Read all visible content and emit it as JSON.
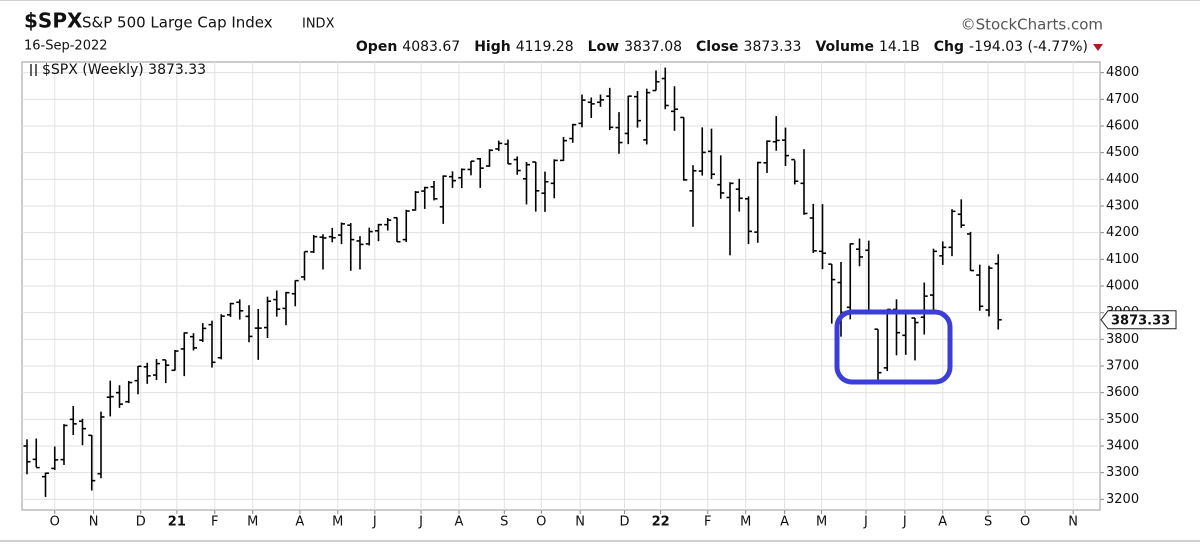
{
  "header": {
    "symbol": "$SPX",
    "name": "S&P 500 Large Cap Index",
    "exchange": "INDX",
    "source": "©StockCharts.com",
    "date": "16-Sep-2022",
    "stats": [
      {
        "label": "Open",
        "value": "4083.67"
      },
      {
        "label": "High",
        "value": "4119.28"
      },
      {
        "label": "Low",
        "value": "3837.08"
      },
      {
        "label": "Close",
        "value": "3873.33"
      },
      {
        "label": "Volume",
        "value": "14.1B"
      },
      {
        "label": "Chg",
        "value": "-194.03 (-4.77%)"
      }
    ]
  },
  "chart_data": {
    "type": "ohlc",
    "series": [
      {
        "name": "$SPX (Weekly) 3873.33",
        "color": "#000000",
        "open": [
          3400,
          3350,
          3285,
          3316,
          3349,
          3500,
          3493,
          3440,
          3296,
          3583,
          3600,
          3566,
          3645,
          3697,
          3666,
          3723,
          3684,
          3764,
          3810,
          3797,
          3855,
          3731,
          3892,
          3939,
          3886,
          3842,
          3844,
          3949,
          3916,
          3971,
          4034,
          4128,
          4183,
          4185,
          4191,
          4228,
          4169,
          4158,
          4207,
          4230,
          4256,
          4174,
          4285,
          4356,
          4372,
          4297,
          4410,
          4406,
          4437,
          4477,
          4450,
          4514,
          4532,
          4474,
          4402,
          4465,
          4348,
          4385,
          4471,
          4553,
          4610,
          4689,
          4689,
          4712,
          4594,
          4572,
          4710,
          4548,
          4733,
          4778,
          4655,
          4632,
          4357,
          4431,
          4505,
          4380,
          4332,
          4363,
          4327,
          4202,
          4462,
          4541,
          4547,
          4474,
          4385,
          4255,
          4130,
          4082,
          4013,
          3920,
          4138,
          4134,
          3838,
          3693,
          3912,
          3815,
          3880,
          3883,
          3966,
          4113,
          4145,
          4269,
          4195,
          4041,
          3910,
          4083.67
        ],
        "high": [
          3425,
          3428,
          3300,
          3398,
          3482,
          3550,
          3502,
          3441,
          3529,
          3645,
          3628,
          3644,
          3700,
          3712,
          3726,
          3723,
          3760,
          3826,
          3823,
          3861,
          3870,
          3894,
          3937,
          3950,
          3928,
          3914,
          3960,
          3983,
          3978,
          4021,
          4129,
          4191,
          4194,
          4218,
          4238,
          4236,
          4187,
          4219,
          4233,
          4255,
          4257,
          4286,
          4356,
          4372,
          4394,
          4415,
          4430,
          4441,
          4469,
          4480,
          4513,
          4545,
          4549,
          4486,
          4465,
          4465,
          4429,
          4475,
          4559,
          4608,
          4718,
          4707,
          4718,
          4743,
          4652,
          4713,
          4731,
          4740,
          4808,
          4819,
          4749,
          4632,
          4453,
          4595,
          4590,
          4490,
          4389,
          4402,
          4336,
          4466,
          4546,
          4637,
          4594,
          4471,
          4513,
          4308,
          4307,
          4082,
          4090,
          4160,
          4178,
          4170,
          3838,
          3913,
          3950,
          3900,
          3880,
          4013,
          4140,
          4167,
          4288,
          4325,
          4203,
          4080,
          4076,
          4119.28
        ],
        "low": [
          3294,
          3320,
          3209,
          3310,
          3329,
          3441,
          3403,
          3233,
          3279,
          3511,
          3543,
          3561,
          3594,
          3633,
          3647,
          3636,
          3683,
          3662,
          3758,
          3790,
          3694,
          3725,
          3884,
          3874,
          3789,
          3723,
          3805,
          3885,
          3853,
          3924,
          4021,
          4124,
          4062,
          4164,
          4157,
          4057,
          4062,
          4152,
          4168,
          4208,
          4165,
          4165,
          4283,
          4289,
          4321,
          4233,
          4368,
          4367,
          4415,
          4368,
          4447,
          4506,
          4457,
          4417,
          4306,
          4279,
          4278,
          4329,
          4469,
          4537,
          4595,
          4630,
          4672,
          4585,
          4496,
          4532,
          4594,
          4531,
          4733,
          4663,
          4582,
          4395,
          4222,
          4414,
          4401,
          4327,
          4115,
          4279,
          4157,
          4162,
          4424,
          4507,
          4450,
          4381,
          4267,
          4124,
          4063,
          3859,
          3810,
          3875,
          4074,
          3900,
          3637,
          3681,
          3740,
          3742,
          3721,
          3818,
          3911,
          4079,
          4112,
          4218,
          4057,
          3907,
          3886,
          3837.08
        ],
        "close": [
          3341,
          3319,
          3298,
          3348,
          3477,
          3483,
          3465,
          3270,
          3509,
          3585,
          3557,
          3638,
          3699,
          3663,
          3709,
          3703,
          3756,
          3824,
          3768,
          3841,
          3714,
          3887,
          3934,
          3907,
          3811,
          3842,
          3943,
          3913,
          3975,
          4020,
          4129,
          4185,
          4180,
          4181,
          4233,
          4174,
          4156,
          4204,
          4230,
          4247,
          4166,
          4281,
          4352,
          4369,
          4327,
          4412,
          4395,
          4437,
          4468,
          4442,
          4509,
          4535,
          4458,
          4433,
          4455,
          4357,
          4391,
          4471,
          4545,
          4605,
          4697,
          4683,
          4698,
          4595,
          4538,
          4712,
          4620,
          4725,
          4766,
          4677,
          4663,
          4398,
          4432,
          4501,
          4419,
          4349,
          4385,
          4329,
          4205,
          4463,
          4543,
          4546,
          4489,
          4393,
          4272,
          4132,
          4123,
          4024,
          3901,
          4158,
          4109,
          3901,
          3675,
          3912,
          3825,
          3899,
          3863,
          3962,
          4130,
          4145,
          4280,
          4228,
          4058,
          3924,
          4067,
          3873.33
        ]
      }
    ],
    "xlim": [
      -0.54,
      116
    ],
    "xticks": [
      {
        "value": 3.0,
        "label": "O"
      },
      {
        "value": 7.2,
        "label": "N"
      },
      {
        "value": 12.3,
        "label": "D"
      },
      {
        "value": 16.2,
        "label": "21"
      },
      {
        "value": 20.3,
        "label": "F"
      },
      {
        "value": 24.4,
        "label": "M"
      },
      {
        "value": 29.5,
        "label": "A"
      },
      {
        "value": 33.6,
        "label": "M"
      },
      {
        "value": 37.6,
        "label": "J"
      },
      {
        "value": 42.6,
        "label": "J"
      },
      {
        "value": 46.7,
        "label": "A"
      },
      {
        "value": 51.6,
        "label": "S"
      },
      {
        "value": 55.6,
        "label": "O"
      },
      {
        "value": 59.8,
        "label": "N"
      },
      {
        "value": 64.6,
        "label": "D"
      },
      {
        "value": 68.5,
        "label": "22"
      },
      {
        "value": 73.6,
        "label": "F"
      },
      {
        "value": 77.7,
        "label": "M"
      },
      {
        "value": 81.9,
        "label": "A"
      },
      {
        "value": 85.9,
        "label": "M"
      },
      {
        "value": 90.7,
        "label": "J"
      },
      {
        "value": 94.9,
        "label": "J"
      },
      {
        "value": 99.0,
        "label": "A"
      },
      {
        "value": 103.9,
        "label": "S"
      },
      {
        "value": 107.9,
        "label": "O"
      },
      {
        "value": 113.1,
        "label": "N"
      }
    ],
    "ylim": [
      3160,
      4840
    ],
    "yticks": [
      3200,
      3300,
      3400,
      3500,
      3600,
      3700,
      3800,
      3900,
      4000,
      4100,
      4200,
      4300,
      4400,
      4500,
      4600,
      4700,
      4800
    ],
    "grid": true
  }
}
